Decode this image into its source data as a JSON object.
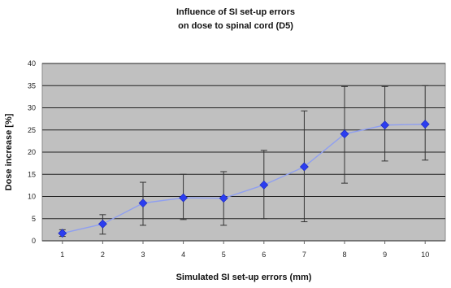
{
  "chart_data": {
    "type": "line",
    "title_lines": [
      "Influence of SI set-up errors",
      "on dose to spinal cord (D5)"
    ],
    "xlabel": "Simulated SI set-up errors (mm)",
    "ylabel": "Dose increase [%]",
    "categories": [
      "1",
      "2",
      "3",
      "4",
      "5",
      "6",
      "7",
      "8",
      "9",
      "10"
    ],
    "x": [
      1,
      2,
      3,
      4,
      5,
      6,
      7,
      8,
      9,
      10
    ],
    "series": [
      {
        "values": [
          1.7,
          3.8,
          8.5,
          9.7,
          9.6,
          12.6,
          16.7,
          24.1,
          26.1,
          26.3
        ],
        "error_low": [
          1.0,
          1.5,
          3.5,
          4.8,
          3.5,
          5.0,
          4.3,
          13.0,
          18.0,
          18.2
        ],
        "error_high": [
          2.5,
          5.9,
          13.2,
          15.0,
          15.6,
          20.4,
          29.3,
          34.8,
          34.8,
          35.0
        ]
      }
    ],
    "ylim": [
      0,
      40
    ],
    "yticks": [
      0,
      5,
      10,
      15,
      20,
      25,
      30,
      35,
      40
    ],
    "grid": true,
    "legend": false
  },
  "colors": {
    "plot_background": "#c0c0c0",
    "gridline": "#222222",
    "marker": "#2b3df0",
    "line": "#8f9ff0",
    "error_bar": "#333333"
  }
}
